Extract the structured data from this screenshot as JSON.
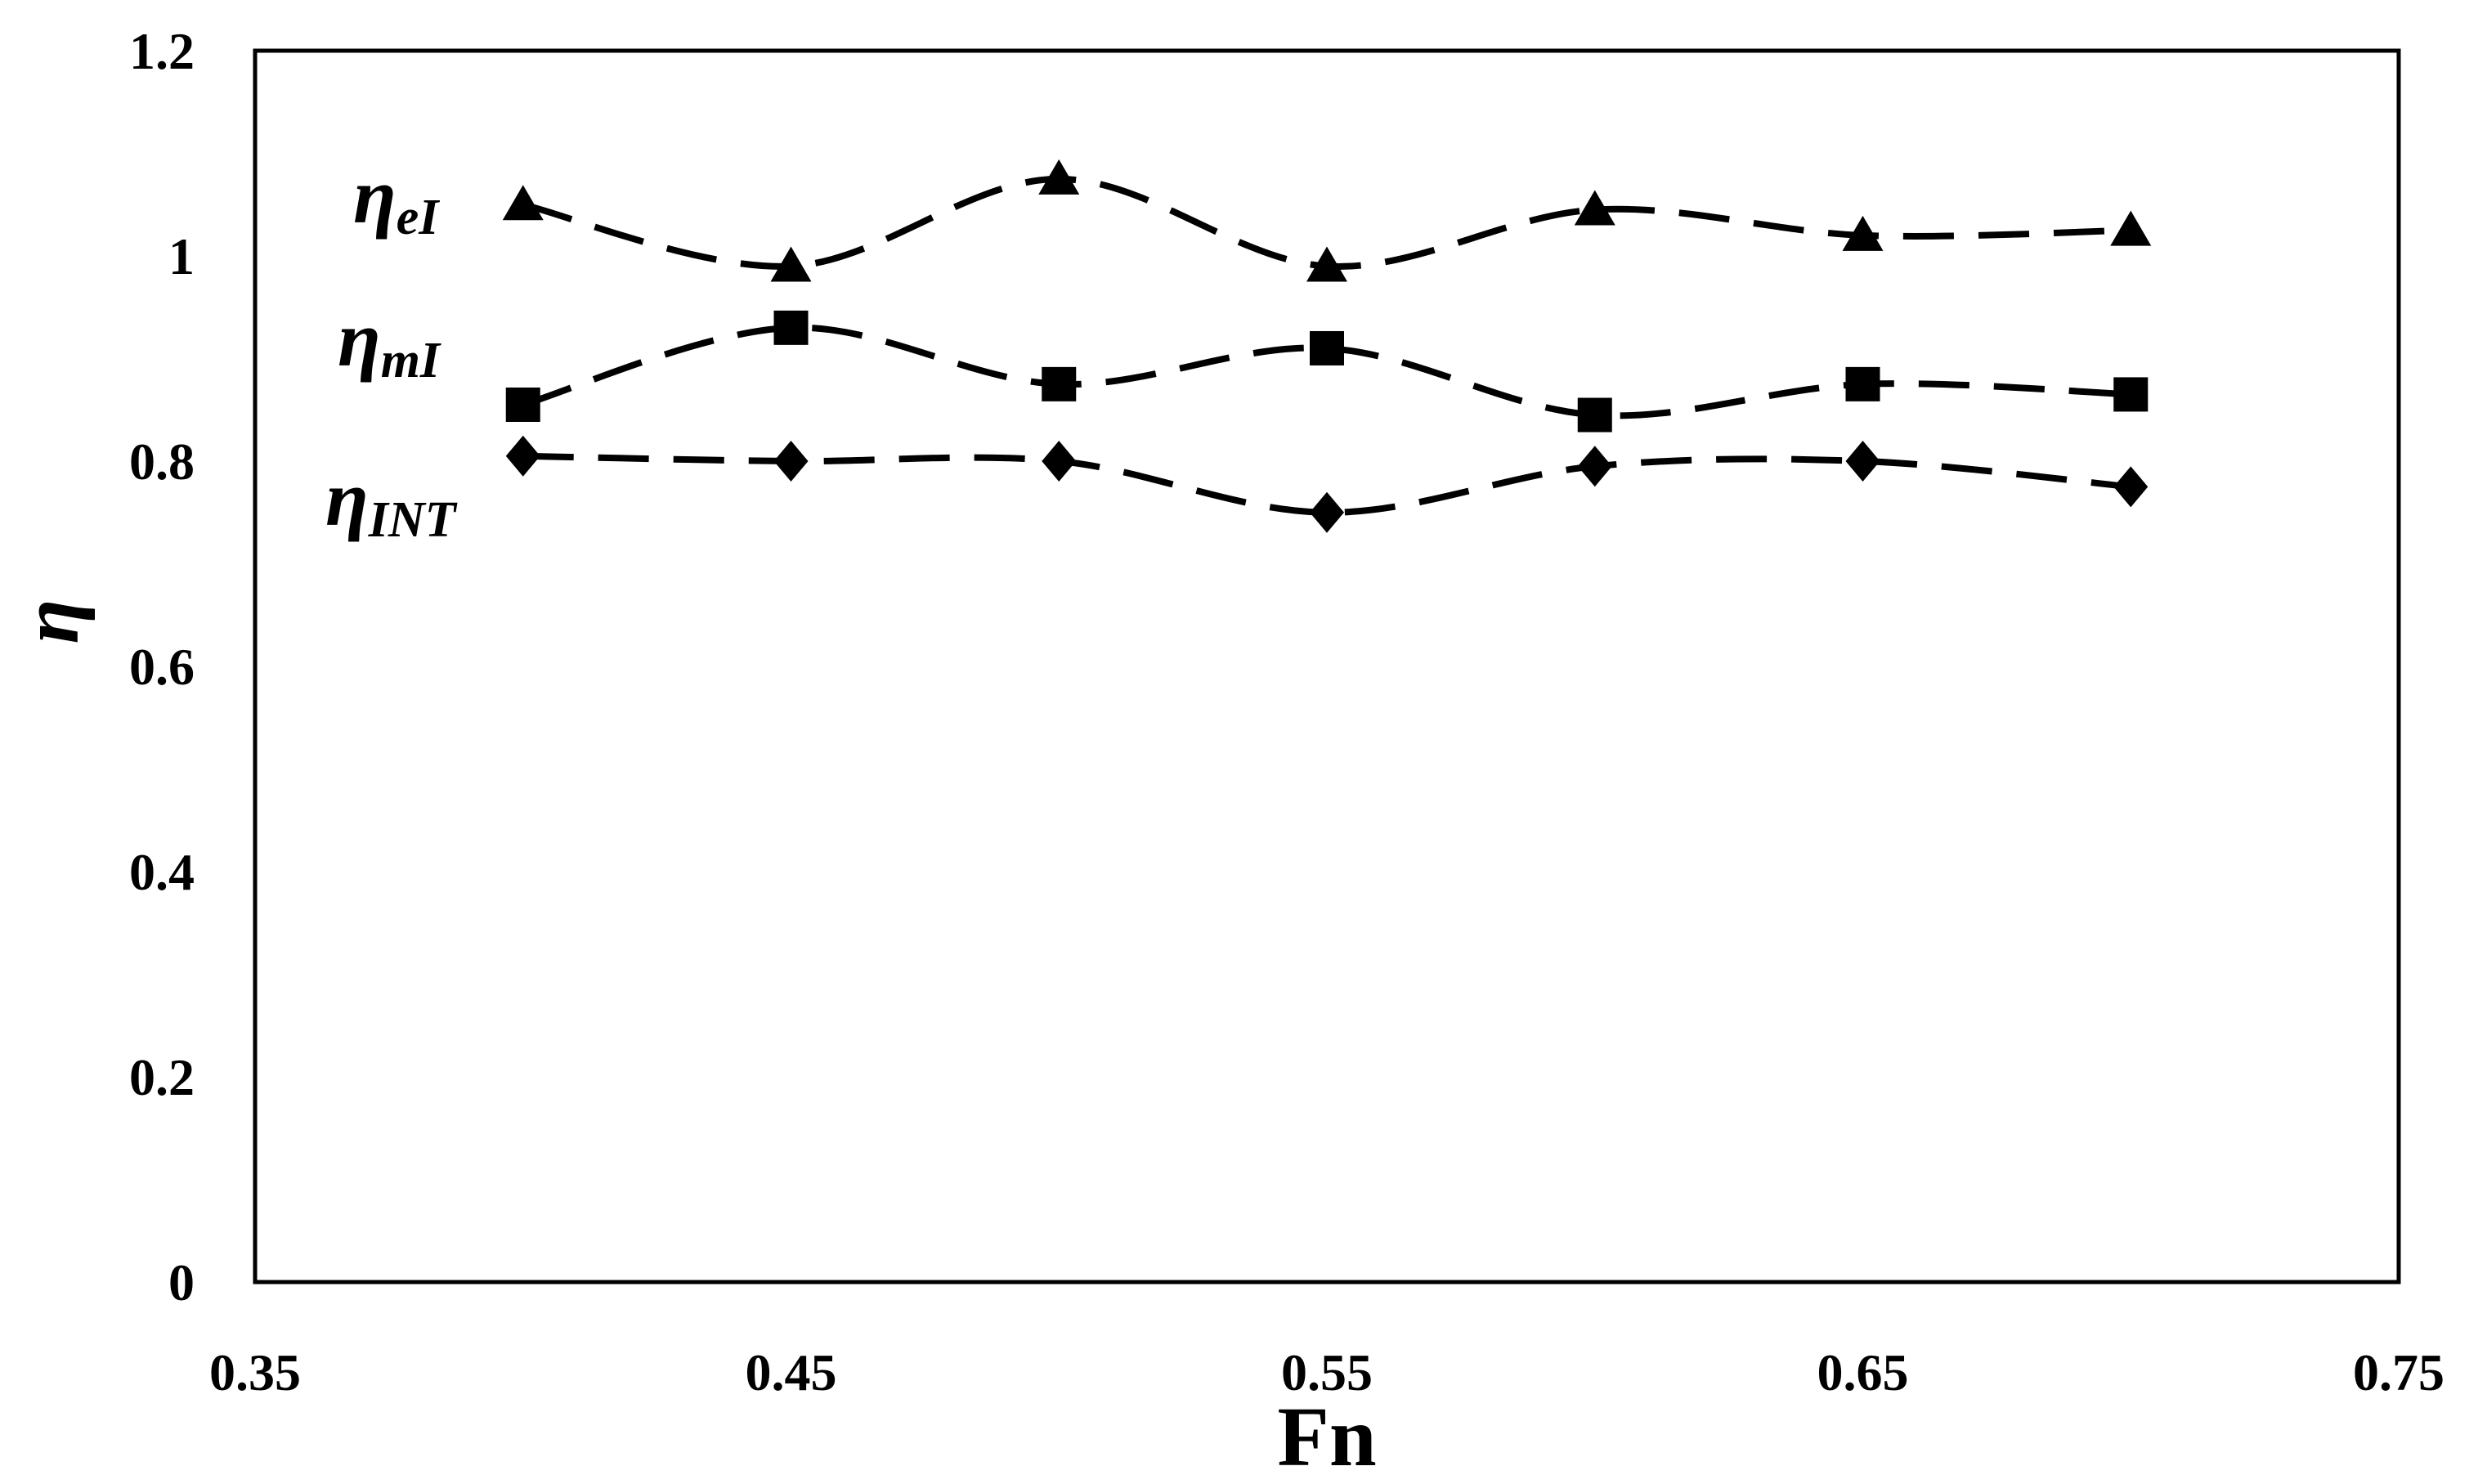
{
  "chart_data": {
    "type": "line",
    "xlabel": "Fn",
    "ylabel": "η",
    "xlim": [
      0.35,
      0.75
    ],
    "ylim": [
      0,
      1.2
    ],
    "xticks": [
      "0.35",
      "0.45",
      "0.55",
      "0.65",
      "0.75"
    ],
    "yticks": [
      "0",
      "0.2",
      "0.4",
      "0.6",
      "0.8",
      "1",
      "1.2"
    ],
    "grid": false,
    "legend": "inline labels at left of series",
    "line_style": "dashed",
    "color": "#000000",
    "x": [
      0.4,
      0.45,
      0.5,
      0.55,
      0.6,
      0.65,
      0.7
    ],
    "series": [
      {
        "name_main": "η",
        "name_sub": "eI",
        "marker": "triangle",
        "values": [
          1.05,
          0.99,
          1.075,
          0.99,
          1.045,
          1.02,
          1.025
        ]
      },
      {
        "name_main": "η",
        "name_sub": "mI",
        "marker": "square",
        "values": [
          0.855,
          0.93,
          0.875,
          0.91,
          0.845,
          0.875,
          0.865
        ]
      },
      {
        "name_main": "η",
        "name_sub": "INT",
        "marker": "diamond",
        "values": [
          0.805,
          0.8,
          0.8,
          0.75,
          0.795,
          0.8,
          0.775
        ]
      }
    ]
  }
}
